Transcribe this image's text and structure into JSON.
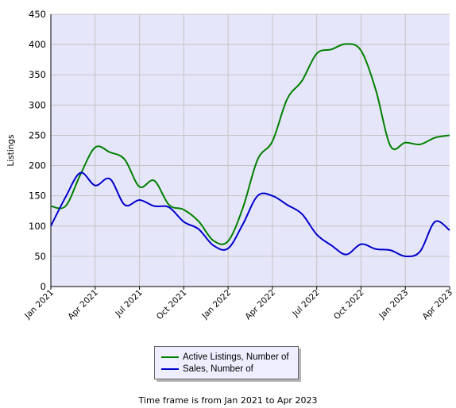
{
  "chart_data": {
    "type": "line",
    "ylabel": "Listings",
    "ylim": [
      0,
      450
    ],
    "yticks": [
      0,
      50,
      100,
      150,
      200,
      250,
      300,
      350,
      400,
      450
    ],
    "xlim": [
      "Jan 2021",
      "Apr 2023"
    ],
    "xticks": [
      "Jan 2021",
      "Apr 2021",
      "Jul 2021",
      "Oct 2021",
      "Jan 2022",
      "Apr 2022",
      "Jul 2022",
      "Oct 2022",
      "Jan 2023",
      "Apr 2023"
    ],
    "grid": true,
    "legend_position": "bottom-center",
    "x": [
      "Jan 2021",
      "Feb 2021",
      "Mar 2021",
      "Apr 2021",
      "May 2021",
      "Jun 2021",
      "Jul 2021",
      "Aug 2021",
      "Sep 2021",
      "Oct 2021",
      "Nov 2021",
      "Dec 2021",
      "Jan 2022",
      "Feb 2022",
      "Mar 2022",
      "Apr 2022",
      "May 2022",
      "Jun 2022",
      "Jul 2022",
      "Aug 2022",
      "Sep 2022",
      "Oct 2022",
      "Nov 2022",
      "Dec 2022",
      "Jan 2023",
      "Feb 2023",
      "Mar 2023",
      "Apr 2023"
    ],
    "series": [
      {
        "name": "Active Listings, Number of",
        "color": "#008000",
        "values": [
          133,
          133,
          185,
          230,
          222,
          210,
          165,
          175,
          135,
          127,
          108,
          76,
          75,
          130,
          210,
          240,
          310,
          340,
          385,
          392,
          401,
          390,
          325,
          232,
          238,
          235,
          246,
          250
        ]
      },
      {
        "name": "Sales, Number of",
        "color": "#0000cc",
        "values": [
          100,
          148,
          188,
          167,
          178,
          135,
          143,
          133,
          131,
          107,
          95,
          68,
          63,
          103,
          150,
          150,
          135,
          120,
          86,
          68,
          53,
          70,
          62,
          60,
          50,
          58,
          107,
          93
        ]
      }
    ]
  },
  "footer": "Time frame is from Jan 2021 to Apr 2023"
}
